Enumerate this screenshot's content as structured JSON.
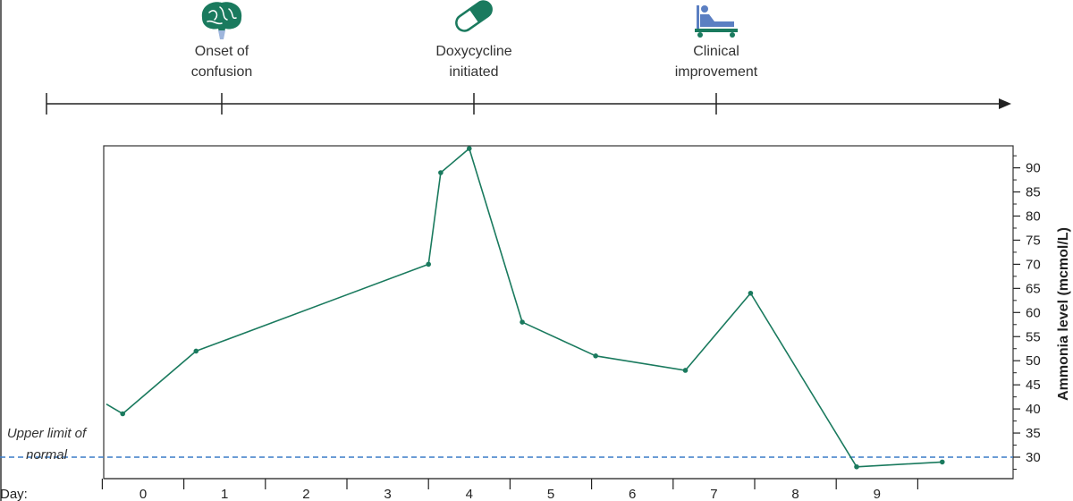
{
  "events": [
    {
      "label_lines": [
        "Onset of",
        "confusion"
      ],
      "day": 1,
      "icon": "brain-icon"
    },
    {
      "label_lines": [
        "Doxycycline",
        "initiated"
      ],
      "day": 4,
      "icon": "capsule-icon"
    },
    {
      "label_lines": [
        "Clinical",
        "improvement"
      ],
      "day": 7,
      "icon": "hospital-bed-icon"
    }
  ],
  "colors": {
    "line": "#1a7a5e",
    "icon_green": "#1a7a5e",
    "icon_blue": "#5b7fc2",
    "reference": "#3a7cc7",
    "axis": "#222222"
  },
  "chart_data": {
    "type": "line",
    "title": "",
    "ylabel": "Ammonia level (mcmol/L)",
    "xlabel": "Day:",
    "ylim": [
      27,
      95
    ],
    "yticks": [
      30,
      35,
      40,
      45,
      50,
      55,
      60,
      65,
      70,
      75,
      80,
      85,
      90
    ],
    "days": [
      "0",
      "1",
      "2",
      "3",
      "4",
      "5",
      "6",
      "7",
      "8",
      "9"
    ],
    "series": [
      {
        "x": [
          -0.45,
          -0.25,
          0.65,
          3.5,
          3.65,
          4.0,
          4.65,
          5.55,
          6.65,
          7.45,
          8.75,
          9.8
        ],
        "y": [
          41,
          39,
          52,
          70,
          89,
          94,
          58,
          51,
          48,
          64,
          28,
          29
        ]
      }
    ],
    "reference_line": {
      "y": 30,
      "label_lines": [
        "Upper limit of",
        "normal"
      ]
    }
  }
}
